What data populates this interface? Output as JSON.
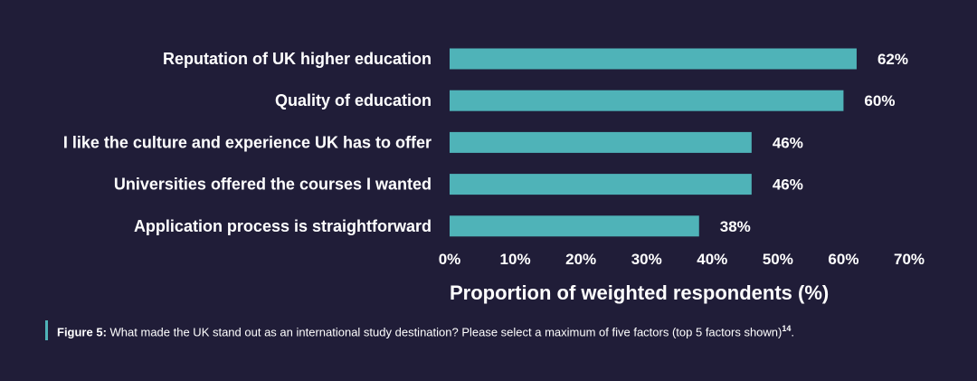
{
  "chart_data": {
    "type": "bar",
    "orientation": "horizontal",
    "categories": [
      "Reputation of UK higher education",
      "Quality of education",
      "I like the culture and experience UK has to offer",
      "Universities offered the courses I wanted",
      "Application process is straightforward"
    ],
    "values": [
      62,
      60,
      46,
      46,
      38
    ],
    "value_labels": [
      "62%",
      "60%",
      "46%",
      "46%",
      "38%"
    ],
    "xlabel": "Proportion of weighted respondents (%)",
    "xlim": [
      0,
      70
    ],
    "xticks": [
      "0%",
      "10%",
      "20%",
      "30%",
      "40%",
      "50%",
      "60%",
      "70%"
    ],
    "grid": false,
    "bar_color": "#4fb3b8"
  },
  "caption": {
    "label": "Figure 5:",
    "text": "What made the UK stand out as an international study destination? Please select a maximum of five factors (top 5 factors shown)",
    "sup": "14",
    "end": "."
  },
  "colors": {
    "background": "#201d38",
    "bar": "#4fb3b8",
    "caption_accent": "#4fb3b8"
  }
}
